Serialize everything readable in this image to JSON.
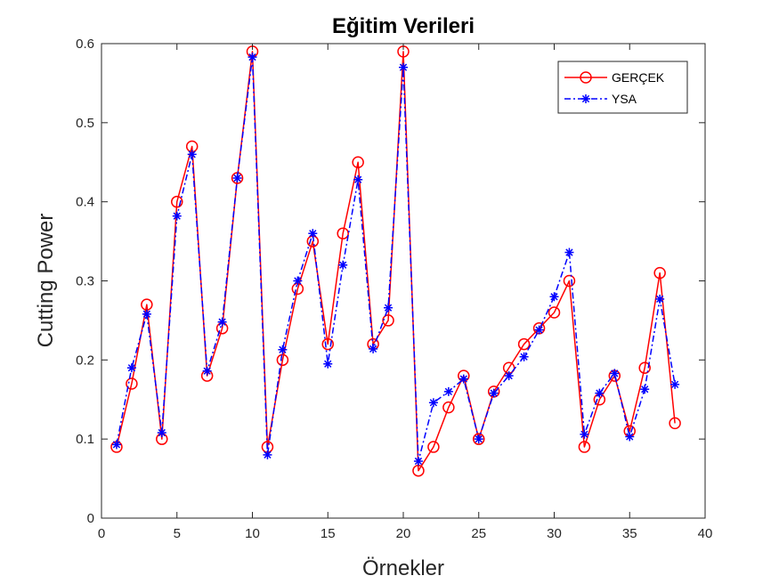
{
  "chart_data": {
    "type": "line",
    "title": "Eğitim Verileri",
    "xlabel": "Örnekler",
    "ylabel": "Cutting Power",
    "xlim": [
      0,
      40
    ],
    "ylim": [
      0,
      0.6
    ],
    "xticks": [
      "0",
      "5",
      "10",
      "15",
      "20",
      "25",
      "30",
      "35",
      "40"
    ],
    "yticks": [
      "0",
      "0.1",
      "0.2",
      "0.3",
      "0.4",
      "0.5",
      "0.6"
    ],
    "grid": false,
    "legend_position": "top-right",
    "x": [
      1,
      2,
      3,
      4,
      5,
      6,
      7,
      8,
      9,
      10,
      11,
      12,
      13,
      14,
      15,
      16,
      17,
      18,
      19,
      20,
      21,
      22,
      23,
      24,
      25,
      26,
      27,
      28,
      29,
      30,
      31,
      32,
      33,
      34,
      35,
      36,
      37,
      38
    ],
    "series": [
      {
        "name": "GERÇEK",
        "color": "#ff0000",
        "marker": "circle",
        "line_style": "solid",
        "values": [
          0.09,
          0.17,
          0.27,
          0.1,
          0.4,
          0.47,
          0.18,
          0.24,
          0.43,
          0.59,
          0.09,
          0.2,
          0.29,
          0.35,
          0.22,
          0.36,
          0.45,
          0.22,
          0.25,
          0.59,
          0.06,
          0.09,
          0.14,
          0.18,
          0.1,
          0.16,
          0.19,
          0.22,
          0.24,
          0.26,
          0.3,
          0.09,
          0.15,
          0.18,
          0.11,
          0.19,
          0.31,
          0.12
        ]
      },
      {
        "name": "YSA",
        "color": "#0000ff",
        "marker": "asterisk",
        "line_style": "dash-dot",
        "values": [
          0.093,
          0.19,
          0.258,
          0.108,
          0.382,
          0.46,
          0.186,
          0.248,
          0.43,
          0.583,
          0.08,
          0.213,
          0.3,
          0.36,
          0.195,
          0.32,
          0.428,
          0.214,
          0.266,
          0.57,
          0.072,
          0.146,
          0.16,
          0.176,
          0.1,
          0.158,
          0.18,
          0.204,
          0.238,
          0.28,
          0.336,
          0.106,
          0.158,
          0.183,
          0.103,
          0.163,
          0.277,
          0.169
        ]
      }
    ]
  }
}
